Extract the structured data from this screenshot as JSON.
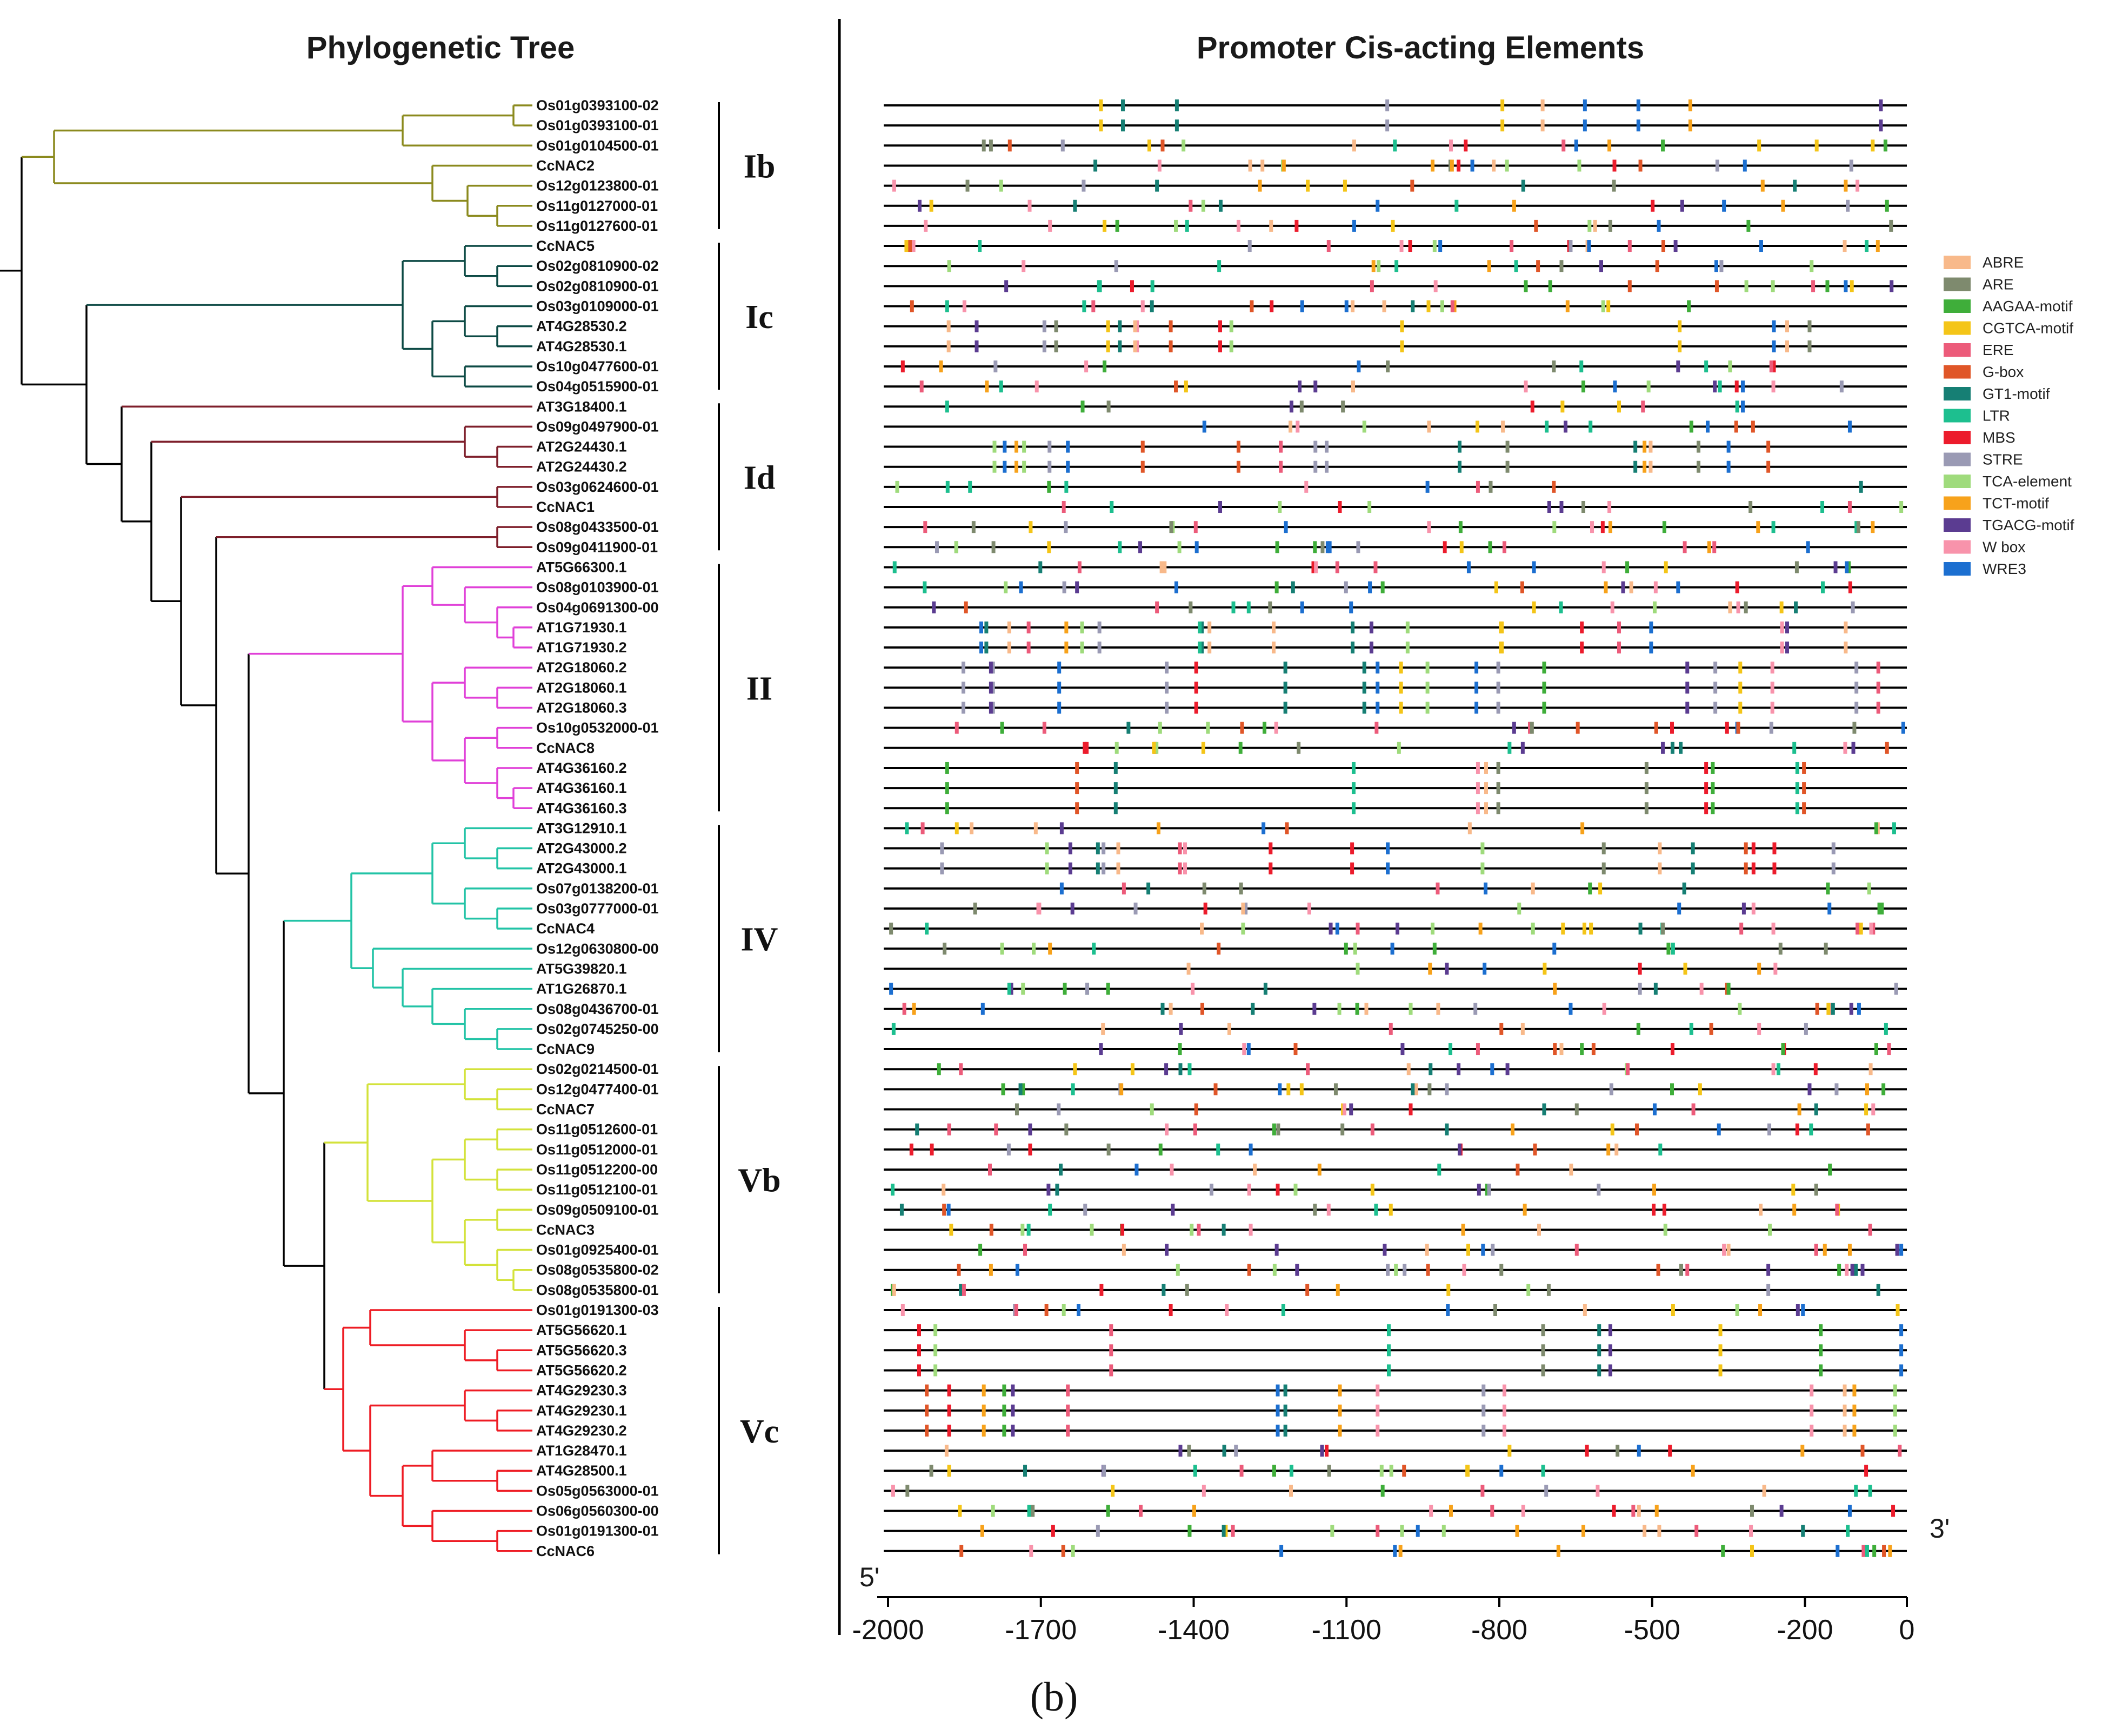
{
  "titles": {
    "left": "Phylogenetic Tree",
    "right": "Promoter Cis-acting Elements"
  },
  "panel_label": "(b)",
  "end_labels": {
    "five_prime": "5'",
    "three_prime": "3'"
  },
  "axis": {
    "ticks": [
      -2000,
      -1700,
      -1400,
      -1100,
      -800,
      -500,
      -200,
      0
    ],
    "tick_labels": [
      "-2000",
      "-1700",
      "-1400",
      "-1100",
      "-800",
      "-500",
      "-200",
      "0"
    ],
    "range": [
      -2000,
      0
    ]
  },
  "legend": [
    {
      "name": "ABRE",
      "color": "#f8b98a"
    },
    {
      "name": "ARE",
      "color": "#7e8a6e"
    },
    {
      "name": "AAGAA-motif",
      "color": "#3fae3a"
    },
    {
      "name": "CGTCA-motif",
      "color": "#f4c518"
    },
    {
      "name": "ERE",
      "color": "#ec5b7a"
    },
    {
      "name": "G-box",
      "color": "#e05628"
    },
    {
      "name": "GT1-motif",
      "color": "#167f74"
    },
    {
      "name": "LTR",
      "color": "#1dbf8f"
    },
    {
      "name": "MBS",
      "color": "#ec1c2c"
    },
    {
      "name": "STRE",
      "color": "#9a9ab4"
    },
    {
      "name": "TCA-element",
      "color": "#9fdb7c"
    },
    {
      "name": "TCT-motif",
      "color": "#f7a21b"
    },
    {
      "name": "TGACG-motif",
      "color": "#5b3c91"
    },
    {
      "name": "W box",
      "color": "#f893ab"
    },
    {
      "name": "WRE3",
      "color": "#1c6fd0"
    }
  ],
  "groups": [
    {
      "name": "Ib",
      "color": "#8b8a1e",
      "start": 0,
      "end": 6
    },
    {
      "name": "Ic",
      "color": "#0d4a45",
      "start": 7,
      "end": 14
    },
    {
      "name": "Id",
      "color": "#7e1f2b",
      "start": 15,
      "end": 22
    },
    {
      "name": "II",
      "color": "#e040d8",
      "start": 23,
      "end": 35
    },
    {
      "name": "IV",
      "color": "#22c3a6",
      "start": 36,
      "end": 47
    },
    {
      "name": "Vb",
      "color": "#d3e23a",
      "start": 48,
      "end": 59
    },
    {
      "name": "Vc",
      "color": "#ee1c24",
      "start": 60,
      "end": 72
    }
  ],
  "genes": [
    "Os01g0393100-02",
    "Os01g0393100-01",
    "Os01g0104500-01",
    "CcNAC2",
    "Os12g0123800-01",
    "Os11g0127000-01",
    "Os11g0127600-01",
    "CcNAC5",
    "Os02g0810900-02",
    "Os02g0810900-01",
    "Os03g0109000-01",
    "AT4G28530.2",
    "AT4G28530.1",
    "Os10g0477600-01",
    "Os04g0515900-01",
    "AT3G18400.1",
    "Os09g0497900-01",
    "AT2G24430.1",
    "AT2G24430.2",
    "Os03g0624600-01",
    "CcNAC1",
    "Os08g0433500-01",
    "Os09g0411900-01",
    "AT5G66300.1",
    "Os08g0103900-01",
    "Os04g0691300-00",
    "AT1G71930.1",
    "AT1G71930.2",
    "AT2G18060.2",
    "AT2G18060.1",
    "AT2G18060.3",
    "Os10g0532000-01",
    "CcNAC8",
    "AT4G36160.2",
    "AT4G36160.1",
    "AT4G36160.3",
    "AT3G12910.1",
    "AT2G43000.2",
    "AT2G43000.1",
    "Os07g0138200-01",
    "Os03g0777000-01",
    "CcNAC4",
    "Os12g0630800-00",
    "AT5G39820.1",
    "AT1G26870.1",
    "Os08g0436700-01",
    "Os02g0745250-00",
    "CcNAC9",
    "Os02g0214500-01",
    "Os12g0477400-01",
    "CcNAC7",
    "Os11g0512600-01",
    "Os11g0512000-01",
    "Os11g0512200-00",
    "Os11g0512100-01",
    "Os09g0509100-01",
    "CcNAC3",
    "Os01g0925400-01",
    "Os08g0535800-02",
    "Os08g0535800-01",
    "Os01g0191300-03",
    "AT5G56620.1",
    "AT5G56620.3",
    "AT5G56620.2",
    "AT4G29230.3",
    "AT4G29230.1",
    "AT4G29230.2",
    "AT1G28470.1",
    "AT4G28500.1",
    "Os05g0563000-01",
    "Os06g0560300-00",
    "Os01g0191300-01",
    "CcNAC6"
  ]
}
